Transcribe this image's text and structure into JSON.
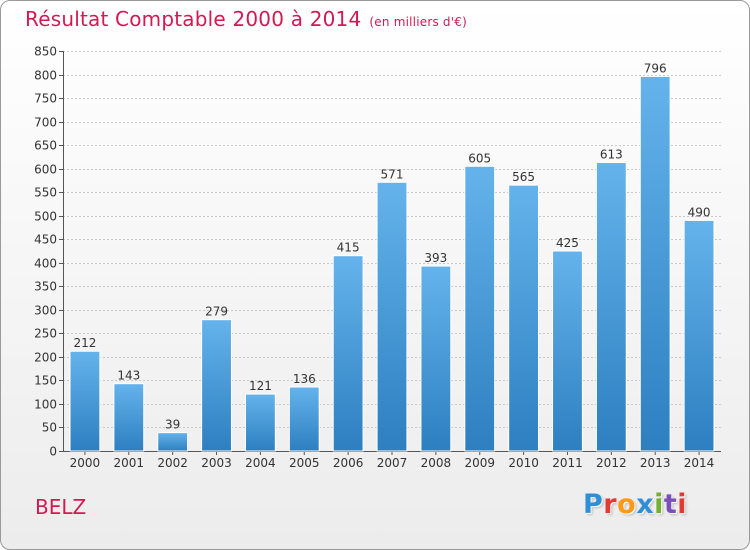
{
  "header": {
    "title": "Résultat Comptable 2000 à 2014",
    "subtitle": "(en milliers d'€)"
  },
  "place": "BELZ",
  "logo": {
    "letters": [
      "P",
      "r",
      "o",
      "x",
      "i",
      "t",
      "i"
    ]
  },
  "colors": {
    "bar_light": "#64b3ec",
    "bar_dark": "#2d7fc0",
    "title": "#d01a52",
    "grid": "#c8c8c8"
  },
  "chart_data": {
    "type": "bar",
    "title": "Résultat Comptable 2000 à 2014",
    "unit_note": "(en milliers d'€)",
    "xlabel": "",
    "ylabel": "",
    "ylim": [
      0,
      850
    ],
    "ytick_step": 50,
    "grid": true,
    "categories": [
      "2000",
      "2001",
      "2002",
      "2003",
      "2004",
      "2005",
      "2006",
      "2007",
      "2008",
      "2009",
      "2010",
      "2011",
      "2012",
      "2013",
      "2014"
    ],
    "values": [
      212,
      143,
      39,
      279,
      121,
      136,
      415,
      571,
      393,
      605,
      565,
      425,
      613,
      796,
      490
    ]
  }
}
